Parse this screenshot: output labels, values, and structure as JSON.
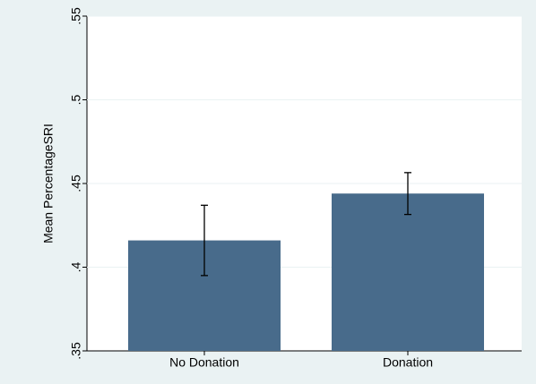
{
  "chart_data": {
    "type": "bar",
    "y_label": "Mean PercentageSRI",
    "categories": [
      "No Donation",
      "Donation"
    ],
    "values": [
      0.416,
      0.444
    ],
    "errors": [
      0.021,
      0.0125
    ],
    "color": "#486b8b",
    "ylim": [
      0.35,
      0.55
    ],
    "yticks": [
      {
        "value": 0.35,
        "label": ".35"
      },
      {
        "value": 0.4,
        "label": ".4"
      },
      {
        "value": 0.45,
        "label": ".45"
      },
      {
        "value": 0.5,
        "label": ".5"
      },
      {
        "value": 0.55,
        "label": ".55"
      }
    ],
    "grid": true
  }
}
